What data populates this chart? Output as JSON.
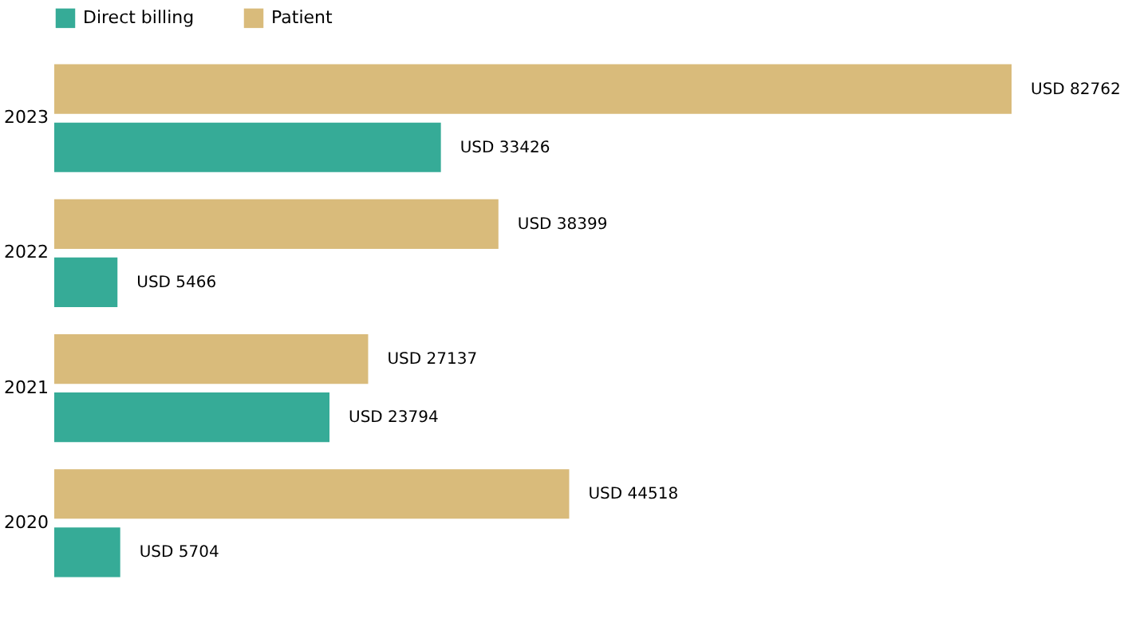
{
  "chart_data": {
    "type": "bar",
    "orientation": "horizontal",
    "categories": [
      "2023",
      "2022",
      "2021",
      "2020"
    ],
    "legend": "top",
    "series": [
      {
        "name": "Direct billing",
        "color": "#36ab97",
        "values": [
          33426,
          5466,
          23794,
          5704
        ],
        "value_labels": [
          "USD 33426",
          "USD 5466",
          "USD 23794",
          "USD 5704"
        ]
      },
      {
        "name": "Patient",
        "color": "#d9bb7b",
        "values": [
          82762,
          38399,
          27137,
          44518
        ],
        "value_labels": [
          "USD 82762",
          "USD 38399",
          "USD 27137",
          "USD 44518"
        ]
      }
    ]
  }
}
